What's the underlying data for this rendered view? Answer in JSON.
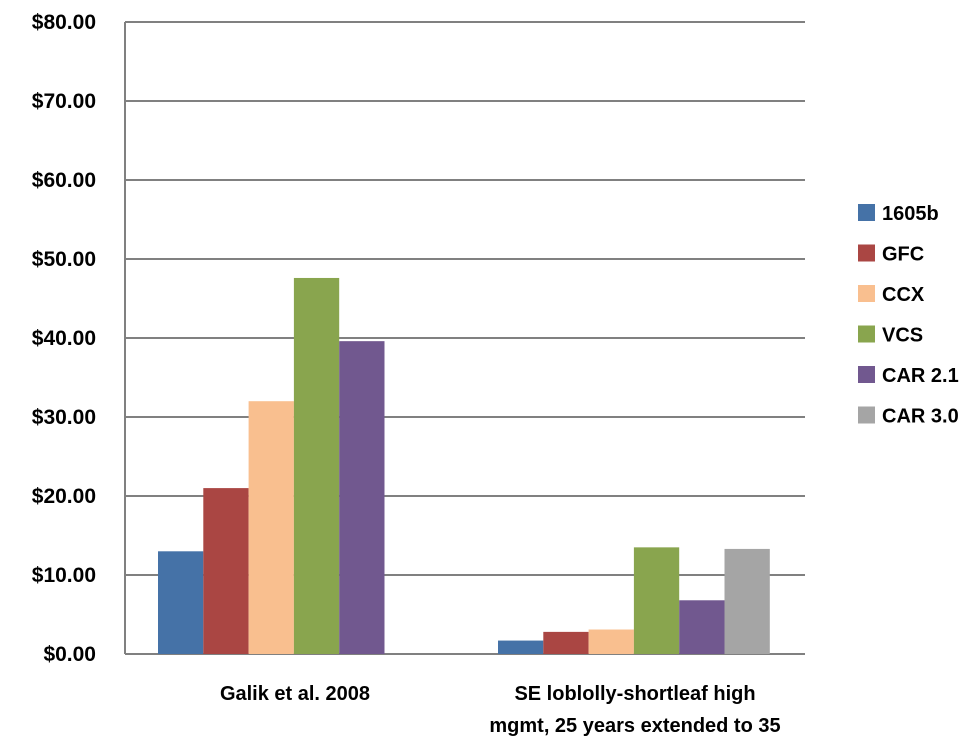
{
  "chart_data": {
    "type": "bar",
    "categories": [
      [
        "Galik et al. 2008"
      ],
      [
        "SE loblolly-shortleaf high",
        "mgmt, 25 years extended to 35"
      ]
    ],
    "series": [
      {
        "name": "1605b",
        "color": "#4572A7",
        "values": [
          13.0,
          1.7
        ]
      },
      {
        "name": "GFC",
        "color": "#AA4643",
        "values": [
          21.0,
          2.8
        ]
      },
      {
        "name": "CCX",
        "color": "#F9BF8F",
        "values": [
          32.0,
          3.1
        ]
      },
      {
        "name": "VCS",
        "color": "#89A54E",
        "values": [
          47.6,
          13.5
        ]
      },
      {
        "name": "CAR 2.1",
        "color": "#71588F",
        "values": [
          39.6,
          6.8
        ]
      },
      {
        "name": "CAR 3.0",
        "color": "#A5A5A5",
        "values": [
          null,
          13.3
        ]
      }
    ],
    "ylim": [
      0,
      80
    ],
    "yticks": [
      0,
      10,
      20,
      30,
      40,
      50,
      60,
      70,
      80
    ],
    "ytick_labels": [
      "$0.00",
      "$10.00",
      "$20.00",
      "$30.00",
      "$40.00",
      "$50.00",
      "$60.00",
      "$70.00",
      "$80.00"
    ],
    "grid": true,
    "legend_position": "right"
  }
}
